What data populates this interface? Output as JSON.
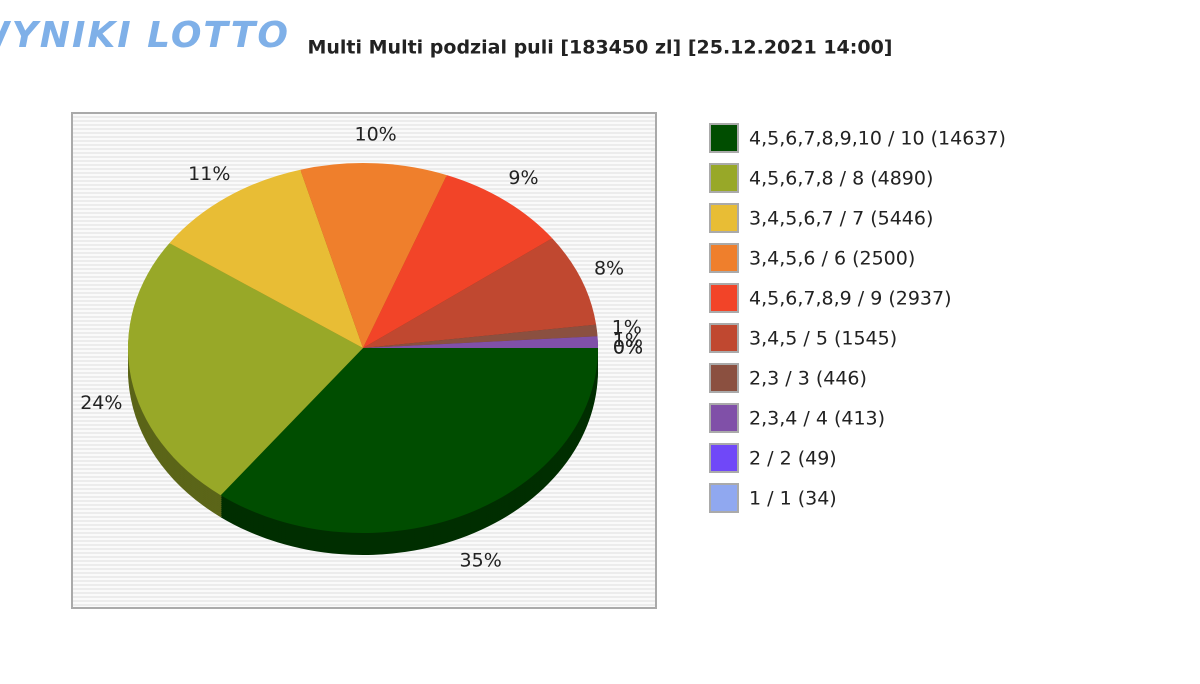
{
  "logo": "WYNIKI LOTTO",
  "chart_data": {
    "type": "pie",
    "title": "Multi Multi podzial puli [183450 zl] [25.12.2021 14:00]",
    "series": [
      {
        "name": "4,5,6,7,8,9,10 / 10 (14637)",
        "color": "#004d00"
      },
      {
        "name": "4,5,6,7,8 / 8 (4890)",
        "color": "#98a828"
      },
      {
        "name": "3,4,5,6,7 / 7 (5446)",
        "color": "#e8bd35"
      },
      {
        "name": "3,4,5,6 / 6 (2500)",
        "color": "#ef7f2c"
      },
      {
        "name": "4,5,6,7,8,9 / 9 (2937)",
        "color": "#f24428"
      },
      {
        "name": "3,4,5 / 5 (1545)",
        "color": "#c04830"
      },
      {
        "name": "2,3 / 3 (446)",
        "color": "#8b5040"
      },
      {
        "name": "2,3,4 / 4 (413)",
        "color": "#8050a8"
      },
      {
        "name": "2 / 2 (49)",
        "color": "#7048f8"
      },
      {
        "name": "1 / 1 (34)",
        "color": "#90a8f0"
      }
    ],
    "values": [
      35,
      24,
      11,
      10,
      9,
      8,
      1,
      1,
      0,
      0
    ],
    "value_labels": [
      "35%",
      "24%",
      "11%",
      "10%",
      "9%",
      "8%",
      "1%",
      "1%",
      "0%",
      "0%"
    ]
  }
}
